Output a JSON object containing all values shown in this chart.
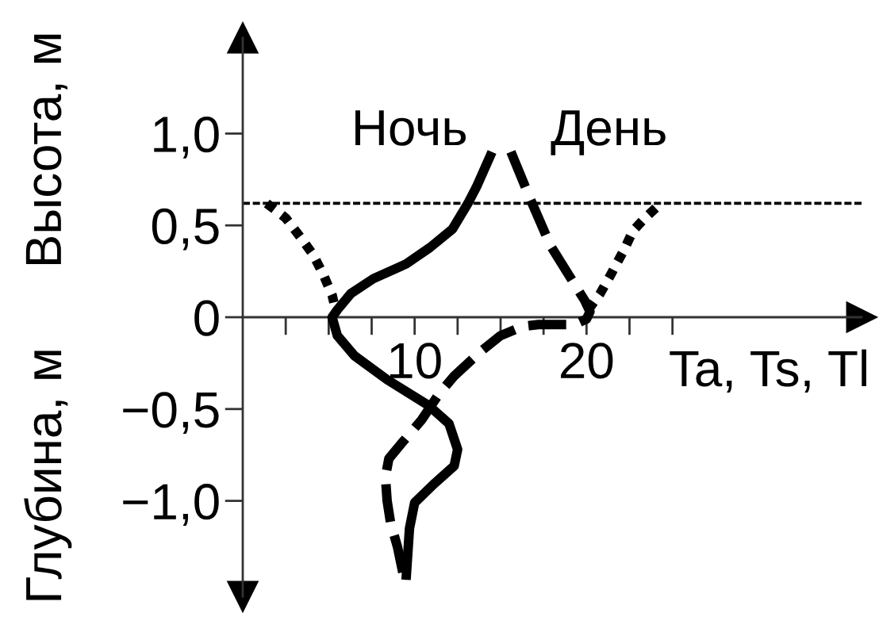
{
  "chart_data": {
    "type": "line",
    "xlabel": "Ta, Ts, Tl",
    "ylabel": "Высота, м",
    "annotations": [
      "Глубина, м"
    ],
    "xlim": [
      0,
      36
    ],
    "ylim": [
      -1.52,
      1.52
    ],
    "xticks": [
      {
        "value": 2.5,
        "label": null
      },
      {
        "value": 5,
        "label": null
      },
      {
        "value": 7.5,
        "label": null
      },
      10,
      {
        "value": 12.5,
        "label": null
      },
      {
        "value": 15,
        "label": null
      },
      {
        "value": 17.5,
        "label": null
      },
      20,
      {
        "value": 22.5,
        "label": null
      },
      {
        "value": 25,
        "label": null
      }
    ],
    "yticks": [
      {
        "value": -1.0,
        "label": "−1,0"
      },
      {
        "value": -0.5,
        "label": "−0,5"
      },
      0,
      {
        "value": 0.5,
        "label": "0,5"
      },
      {
        "value": 1.0,
        "label": "1,0"
      }
    ],
    "ref_lines": [
      {
        "axis": "y",
        "value": 0.62,
        "color": "#000000",
        "line_style": "dotted"
      }
    ],
    "series": [
      {
        "name": "Ночь",
        "color": "#000000",
        "line_style": "solid",
        "x": [
          14.5,
          13.6,
          13.1,
          12.2,
          10.9,
          9.5,
          7.6,
          6.3,
          5.5,
          5.2,
          5.5,
          6.5,
          8.4,
          10.8,
          12.0,
          12.5,
          12.3,
          11.1,
          10.0,
          9.7,
          9.5
        ],
        "values": [
          0.9,
          0.71,
          0.62,
          0.48,
          0.38,
          0.29,
          0.21,
          0.13,
          0.04,
          0,
          -0.1,
          -0.21,
          -0.34,
          -0.48,
          -0.58,
          -0.72,
          -0.81,
          -0.91,
          -1.01,
          -1.15,
          -1.43
        ]
      },
      {
        "name": "День",
        "color": "#000000",
        "line_style": "dashed",
        "x": [
          15.6,
          16.7,
          17.9,
          19.1,
          19.9,
          20.2,
          20.0,
          19.3,
          17.2,
          16.3,
          15.0,
          13.8,
          12.3,
          11.4,
          10.4,
          9.3,
          8.5,
          8.3,
          8.4,
          8.6,
          9.0,
          9.4
        ],
        "values": [
          0.9,
          0.65,
          0.39,
          0.21,
          0.09,
          0.03,
          -0.01,
          -0.04,
          -0.04,
          -0.05,
          -0.1,
          -0.19,
          -0.32,
          -0.42,
          -0.56,
          -0.68,
          -0.77,
          -0.87,
          -1.0,
          -1.12,
          -1.25,
          -1.43
        ]
      },
      {
        "color": "#000000",
        "line_style": "dotted",
        "x": [
          1.4,
          2.5,
          3.4,
          4.1,
          4.7,
          5.2,
          5.3
        ],
        "values": [
          0.62,
          0.54,
          0.43,
          0.34,
          0.23,
          0.12,
          0.08
        ]
      },
      {
        "color": "#000000",
        "line_style": "dotted",
        "x": [
          20.1,
          20.8,
          21.4,
          22.2,
          22.7,
          23.4,
          24.2
        ],
        "values": [
          0.04,
          0.13,
          0.23,
          0.37,
          0.47,
          0.54,
          0.61
        ]
      }
    ]
  }
}
